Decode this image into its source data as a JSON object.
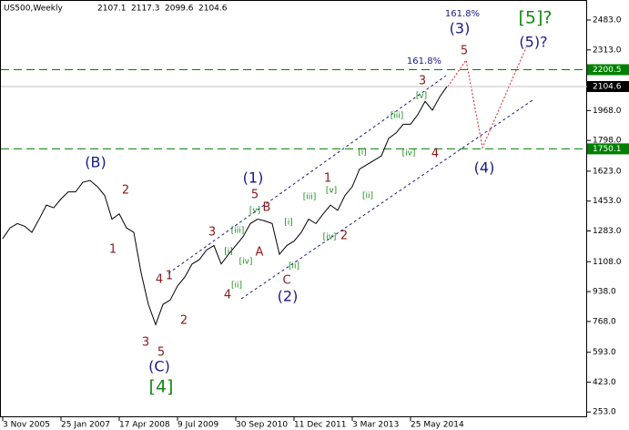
{
  "chart_data": {
    "type": "line",
    "title": "US500,Weekly",
    "ohlc": [
      2107.1,
      2117.3,
      2099.6,
      2104.6
    ],
    "categories": [
      "3 Nov 2005",
      null,
      null,
      null,
      null,
      null,
      null,
      null,
      "25 Jan 2007",
      null,
      null,
      null,
      null,
      null,
      null,
      null,
      "17 Apr 2008",
      null,
      null,
      null,
      null,
      null,
      null,
      null,
      "9 Jul 2009",
      null,
      null,
      null,
      null,
      null,
      null,
      null,
      "30 Sep 2010",
      null,
      null,
      null,
      null,
      null,
      null,
      null,
      "11 Dec 2011",
      null,
      null,
      null,
      null,
      null,
      null,
      null,
      "3 Mar 2013",
      null,
      null,
      null,
      null,
      null,
      null,
      null,
      "25 May 2014",
      null,
      null,
      null,
      null,
      null
    ],
    "series": [
      {
        "name": "US500",
        "color": "#000000",
        "values": [
          1240,
          1300,
          1325,
          1310,
          1275,
          1350,
          1430,
          1415,
          1465,
          1505,
          1505,
          1560,
          1570,
          1535,
          1485,
          1350,
          1380,
          1300,
          1275,
          1045,
          865,
          750,
          865,
          890,
          970,
          1020,
          1095,
          1120,
          1175,
          1200,
          1095,
          1150,
          1200,
          1250,
          1325,
          1350,
          1340,
          1325,
          1150,
          1200,
          1225,
          1275,
          1350,
          1325,
          1380,
          1430,
          1400,
          1485,
          1535,
          1635,
          1660,
          1685,
          1710,
          1810,
          1840,
          1890,
          1890,
          1945,
          2020,
          1970,
          2045,
          2105
        ]
      }
    ],
    "ylim": [
      223,
      2597
    ],
    "yticks": [
      {
        "value": 2483,
        "label": "2483.0"
      },
      {
        "value": 2313,
        "label": "2313.0"
      },
      {
        "value": 1968,
        "label": "1968.0"
      },
      {
        "value": 1798,
        "label": "1798.0"
      },
      {
        "value": 1623,
        "label": "1623.0"
      },
      {
        "value": 1453,
        "label": "1453.0"
      },
      {
        "value": 1283,
        "label": "1283.0"
      },
      {
        "value": 1108,
        "label": "1108.0"
      },
      {
        "value": 938,
        "label": "938.0"
      },
      {
        "value": 768,
        "label": "768.0"
      },
      {
        "value": 593,
        "label": "593.0"
      },
      {
        "value": 423,
        "label": "423.0"
      },
      {
        "value": 253,
        "label": "253.0"
      }
    ],
    "levels": [
      2200.5,
      1750.1
    ],
    "level_color": "#008000",
    "last_price": 2104.6,
    "annotations": [
      {
        "text": "(B)",
        "color": "#1a1a8c"
      },
      {
        "text": "(C)",
        "color": "#1a1a8c"
      },
      {
        "text": "(1)",
        "color": "#1a1a8c"
      },
      {
        "text": "(2)",
        "color": "#1a1a8c"
      },
      {
        "text": "(3)",
        "color": "#1a1a8c"
      },
      {
        "text": "(4)",
        "color": "#1a1a8c"
      },
      {
        "text": "(5)?",
        "color": "#1a1a8c"
      },
      {
        "text": "[4]",
        "color": "#138a13"
      },
      {
        "text": "[5]?",
        "color": "#138a13"
      },
      {
        "text": "2",
        "color": "#8b1a1a"
      },
      {
        "text": "1",
        "color": "#8b1a1a"
      },
      {
        "text": "3",
        "color": "#8b1a1a"
      },
      {
        "text": "5",
        "color": "#8b1a1a"
      },
      {
        "text": "4",
        "color": "#8b1a1a"
      },
      {
        "text": "1",
        "color": "#8b1a1a"
      },
      {
        "text": "2",
        "color": "#8b1a1a"
      },
      {
        "text": "3",
        "color": "#8b1a1a"
      },
      {
        "text": "4",
        "color": "#8b1a1a"
      },
      {
        "text": "5",
        "color": "#8b1a1a"
      },
      {
        "text": "A",
        "color": "#8b1a1a"
      },
      {
        "text": "B",
        "color": "#8b1a1a"
      },
      {
        "text": "C",
        "color": "#8b1a1a"
      },
      {
        "text": "1",
        "color": "#8b1a1a"
      },
      {
        "text": "2",
        "color": "#8b1a1a"
      },
      {
        "text": "3",
        "color": "#8b1a1a"
      },
      {
        "text": "4",
        "color": "#8b1a1a"
      },
      {
        "text": "5",
        "color": "#8b1a1a"
      },
      {
        "text": "[i]",
        "color": "#138a13"
      },
      {
        "text": "[ii]",
        "color": "#138a13"
      },
      {
        "text": "[iii]",
        "color": "#138a13"
      },
      {
        "text": "[iv]",
        "color": "#138a13"
      },
      {
        "text": "[v]",
        "color": "#138a13"
      },
      {
        "text": "[i]",
        "color": "#138a13"
      },
      {
        "text": "[ii]",
        "color": "#138a13"
      },
      {
        "text": "[iii]",
        "color": "#138a13"
      },
      {
        "text": "[iv]",
        "color": "#138a13"
      },
      {
        "text": "[v]",
        "color": "#138a13"
      },
      {
        "text": "[i]",
        "color": "#138a13"
      },
      {
        "text": "[ii]",
        "color": "#138a13"
      },
      {
        "text": "[iii]",
        "color": "#138a13"
      },
      {
        "text": "[iv]",
        "color": "#138a13"
      },
      {
        "text": "[v]",
        "color": "#138a13"
      },
      {
        "text": "161.8%",
        "color": "#1a1a8c"
      },
      {
        "text": "161.8%",
        "color": "#1a1a8c"
      }
    ]
  }
}
